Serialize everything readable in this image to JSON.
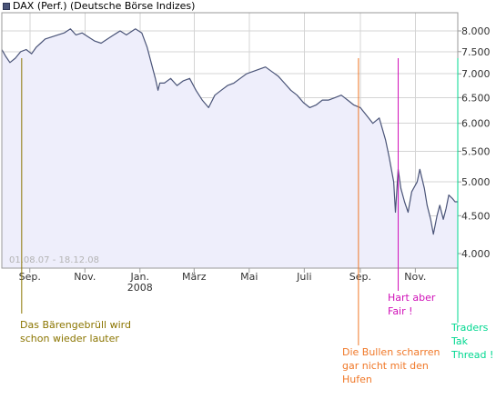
{
  "title": "DAX (Perf.) (Deutsche Börse Indizes)",
  "date_range": "01.08.07 - 18.12.08",
  "colors": {
    "line": "#4a5478",
    "fill": "#eeeefb",
    "grid": "#d4d4d4",
    "frame": "#9a9a9a",
    "ann_olive": "#8b7500",
    "ann_orange": "#f07828",
    "ann_magenta": "#d010b8",
    "ann_green": "#00d890"
  },
  "chart_data": {
    "type": "line",
    "title": "DAX (Perf.) (Deutsche Börse Indizes)",
    "xlabel": "",
    "ylabel": "",
    "ylim": [
      3800,
      8400
    ],
    "y_scale": "log",
    "grid": true,
    "x_range": [
      "2007-08-01",
      "2008-12-18"
    ],
    "x_ticks": [
      {
        "date": "2007-09-01",
        "label": "Sep."
      },
      {
        "date": "2007-11-01",
        "label": "Nov."
      },
      {
        "date": "2008-01-01",
        "label": "Jan.",
        "sublabel": "2008"
      },
      {
        "date": "2008-03-01",
        "label": "März"
      },
      {
        "date": "2008-05-01",
        "label": "Mai"
      },
      {
        "date": "2008-07-01",
        "label": "Juli"
      },
      {
        "date": "2008-09-01",
        "label": "Sep."
      },
      {
        "date": "2008-11-01",
        "label": "Nov."
      }
    ],
    "y_ticks": [
      {
        "value": 4000,
        "label": "4.000"
      },
      {
        "value": 4500,
        "label": "4.500"
      },
      {
        "value": 5000,
        "label": "5.000"
      },
      {
        "value": 5500,
        "label": "5.500"
      },
      {
        "value": 6000,
        "label": "6.000"
      },
      {
        "value": 6500,
        "label": "6.500"
      },
      {
        "value": 7000,
        "label": "7.000"
      },
      {
        "value": 7500,
        "label": "7.500"
      },
      {
        "value": 8000,
        "label": "8.000"
      }
    ],
    "series": [
      {
        "x": [
          "2007-08-01",
          "2007-08-05",
          "2007-08-10",
          "2007-08-16",
          "2007-08-22",
          "2007-08-28",
          "2007-09-03",
          "2007-09-08",
          "2007-09-13",
          "2007-09-18",
          "2007-09-25",
          "2007-10-02",
          "2007-10-09",
          "2007-10-16",
          "2007-10-22",
          "2007-10-29",
          "2007-11-05",
          "2007-11-12",
          "2007-11-19",
          "2007-11-26",
          "2007-12-03",
          "2007-12-10",
          "2007-12-17",
          "2007-12-27",
          "2008-01-03",
          "2008-01-09",
          "2008-01-14",
          "2008-01-18",
          "2008-01-21",
          "2008-01-23",
          "2008-01-28",
          "2008-02-04",
          "2008-02-11",
          "2008-02-18",
          "2008-02-25",
          "2008-03-03",
          "2008-03-10",
          "2008-03-17",
          "2008-03-24",
          "2008-03-31",
          "2008-04-07",
          "2008-04-14",
          "2008-04-21",
          "2008-04-28",
          "2008-05-05",
          "2008-05-12",
          "2008-05-19",
          "2008-05-26",
          "2008-06-02",
          "2008-06-09",
          "2008-06-16",
          "2008-06-23",
          "2008-06-30",
          "2008-07-07",
          "2008-07-14",
          "2008-07-21",
          "2008-07-28",
          "2008-08-04",
          "2008-08-11",
          "2008-08-18",
          "2008-08-25",
          "2008-09-01",
          "2008-09-08",
          "2008-09-15",
          "2008-09-22",
          "2008-09-29",
          "2008-10-03",
          "2008-10-08",
          "2008-10-10",
          "2008-10-13",
          "2008-10-16",
          "2008-10-20",
          "2008-10-24",
          "2008-10-28",
          "2008-11-03",
          "2008-11-06",
          "2008-11-11",
          "2008-11-14",
          "2008-11-18",
          "2008-11-21",
          "2008-11-25",
          "2008-11-28",
          "2008-12-02",
          "2008-12-05",
          "2008-12-08",
          "2008-12-12",
          "2008-12-15",
          "2008-12-18"
        ],
        "y": [
          7550,
          7400,
          7250,
          7350,
          7500,
          7550,
          7450,
          7600,
          7700,
          7800,
          7850,
          7900,
          7950,
          8050,
          7900,
          7950,
          7850,
          7750,
          7700,
          7800,
          7900,
          8000,
          7900,
          8050,
          7950,
          7600,
          7200,
          6900,
          6650,
          6800,
          6800,
          6900,
          6750,
          6850,
          6900,
          6650,
          6450,
          6300,
          6550,
          6650,
          6750,
          6800,
          6900,
          7000,
          7050,
          7100,
          7150,
          7050,
          6950,
          6800,
          6650,
          6550,
          6400,
          6300,
          6350,
          6450,
          6450,
          6500,
          6550,
          6450,
          6350,
          6300,
          6150,
          6000,
          6100,
          5700,
          5400,
          5000,
          4550,
          5200,
          4900,
          4700,
          4550,
          4850,
          5000,
          5200,
          4900,
          4650,
          4450,
          4250,
          4500,
          4650,
          4450,
          4600,
          4800,
          4750,
          4700,
          4700
        ]
      }
    ],
    "annotations": [
      {
        "date": "2007-08-23",
        "text": "Das Bärengebrüll wird\nschon wieder lauter",
        "color": "#8b7500"
      },
      {
        "date": "2008-08-30",
        "text": "Die Bullen scharren\ngar nicht mit den\nHufen",
        "color": "#f07828"
      },
      {
        "date": "2008-10-13",
        "text": "Hart aber\nFair !",
        "color": "#d010b8"
      },
      {
        "date": "2008-12-18",
        "text": "Traders\nTak\nThread !",
        "color": "#00d890"
      }
    ]
  }
}
